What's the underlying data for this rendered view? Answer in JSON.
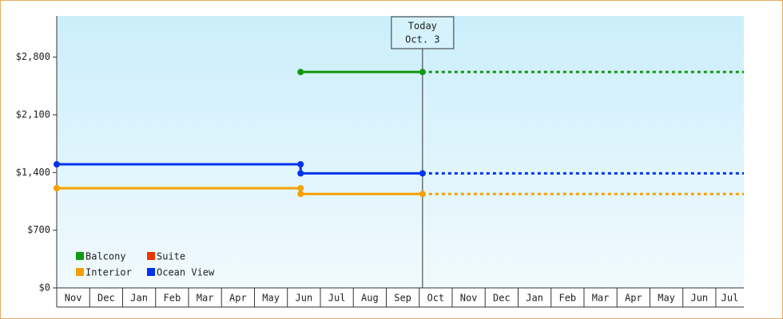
{
  "chart_data": {
    "type": "line",
    "categories": [
      "Nov",
      "Dec",
      "Jan",
      "Feb",
      "Mar",
      "Apr",
      "May",
      "Jun",
      "Jul",
      "Aug",
      "Sep",
      "Oct",
      "Nov",
      "Dec",
      "Jan",
      "Feb",
      "Mar",
      "Apr",
      "May",
      "Jun",
      "Jul"
    ],
    "xlim": [
      0,
      20.85
    ],
    "ylim": [
      0,
      3300
    ],
    "yticks": [
      {
        "value": 0,
        "label": "$0"
      },
      {
        "value": 700,
        "label": "$700"
      },
      {
        "value": 1400,
        "label": "$1,400"
      },
      {
        "value": 2100,
        "label": "$2,100"
      },
      {
        "value": 2800,
        "label": "$2,800"
      }
    ],
    "annotation": {
      "text": [
        "Today",
        "Oct. 3"
      ],
      "x": 11.1
    },
    "legend": "bottom-left",
    "series": [
      {
        "name": "Balcony",
        "color": "#119911",
        "x": [
          7.4,
          11.1,
          20.85
        ],
        "values": [
          2620,
          2620,
          2620
        ]
      },
      {
        "name": "Suite",
        "color": "#ee3300",
        "x": [],
        "values": []
      },
      {
        "name": "Interior",
        "color": "#f5a000",
        "x": [
          0,
          7.4,
          7.4,
          11.1,
          20.85
        ],
        "values": [
          1210,
          1210,
          1140,
          1140,
          1140
        ]
      },
      {
        "name": "Ocean View",
        "color": "#0033ee",
        "x": [
          0,
          7.4,
          7.4,
          11.1,
          20.85
        ],
        "values": [
          1500,
          1500,
          1390,
          1390,
          1390
        ]
      }
    ]
  }
}
